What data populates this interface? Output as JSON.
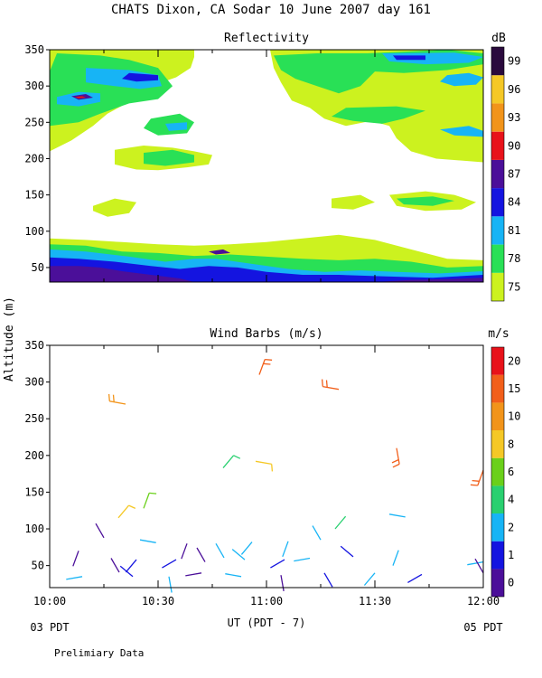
{
  "title": "CHATS Dixon, CA  Sodar  10 June 2007  day 161",
  "ylabel": "Altitude (m)",
  "footer": {
    "left_date": "03 PDT",
    "right_date": "05 PDT",
    "axis_label": "UT  (PDT - 7)",
    "note": "Prelimiary Data"
  },
  "chart_data": [
    {
      "type": "heatmap",
      "title": "Reflectivity",
      "xlabel": "UT  (PDT - 7)",
      "ylabel": "Altitude (m)",
      "x_range": [
        "10:00",
        "12:00"
      ],
      "ylim": [
        30,
        350
      ],
      "y_ticks": [
        50,
        100,
        150,
        200,
        250,
        300,
        350
      ],
      "colorbar": {
        "unit": "dB",
        "levels": [
          75,
          78,
          81,
          84,
          87,
          90,
          93,
          96,
          99
        ],
        "colors": [
          "#ccf21f",
          "#29e056",
          "#17b4f5",
          "#1414e0",
          "#4b0f99",
          "#e8121a",
          "#f2941a",
          "#f5c826",
          "#2a0a3d"
        ]
      },
      "grid": false
    },
    {
      "type": "scatter",
      "title": "Wind Barbs (m/s)",
      "xlabel": "UT  (PDT - 7)",
      "ylabel": "Altitude (m)",
      "x_ticks": [
        "10:00",
        "10:30",
        "11:00",
        "11:30",
        "12:00"
      ],
      "ylim": [
        20,
        350
      ],
      "y_ticks": [
        50,
        100,
        150,
        200,
        250,
        300,
        350
      ],
      "colorbar": {
        "unit": "m/s",
        "levels": [
          0,
          1,
          2,
          4,
          6,
          8,
          10,
          15,
          20
        ],
        "colors": [
          "#4b0f99",
          "#1414e0",
          "#17b4f5",
          "#29d070",
          "#6ad01a",
          "#f5c826",
          "#f2941a",
          "#f25f1a",
          "#e8121a"
        ]
      },
      "barbs": [
        {
          "time": "10:08",
          "z": 70,
          "speed": 0.8
        },
        {
          "time": "10:09",
          "z": 35,
          "speed": 2.5
        },
        {
          "time": "10:15",
          "z": 88,
          "speed": 0.8
        },
        {
          "time": "10:17",
          "z": 60,
          "speed": 0.5
        },
        {
          "time": "10:19",
          "z": 115,
          "speed": 9
        },
        {
          "time": "10:21",
          "z": 270,
          "speed": 10
        },
        {
          "time": "10:23",
          "z": 35,
          "speed": 1
        },
        {
          "time": "10:24",
          "z": 58,
          "speed": 1
        },
        {
          "time": "10:25",
          "z": 85,
          "speed": 2.5
        },
        {
          "time": "10:26",
          "z": 128,
          "speed": 6
        },
        {
          "time": "10:33",
          "z": 35,
          "speed": 2.5
        },
        {
          "time": "10:35",
          "z": 58,
          "speed": 1
        },
        {
          "time": "10:38",
          "z": 80,
          "speed": 0.5
        },
        {
          "time": "10:42",
          "z": 40,
          "speed": 0.5
        },
        {
          "time": "10:43",
          "z": 55,
          "speed": 0.8
        },
        {
          "time": "10:46",
          "z": 80,
          "speed": 3.5
        },
        {
          "time": "10:48",
          "z": 183,
          "speed": 5
        },
        {
          "time": "10:53",
          "z": 35,
          "speed": 2.5
        },
        {
          "time": "10:54",
          "z": 58,
          "speed": 2
        },
        {
          "time": "10:56",
          "z": 82,
          "speed": 3
        },
        {
          "time": "10:57",
          "z": 192,
          "speed": 9
        },
        {
          "time": "10:58",
          "z": 310,
          "speed": 15
        },
        {
          "time": "11:04",
          "z": 37,
          "speed": 0.8
        },
        {
          "time": "11:05",
          "z": 58,
          "speed": 1
        },
        {
          "time": "11:06",
          "z": 83,
          "speed": 3
        },
        {
          "time": "11:12",
          "z": 60,
          "speed": 2
        },
        {
          "time": "11:15",
          "z": 85,
          "speed": 2.5
        },
        {
          "time": "11:16",
          "z": 40,
          "speed": 1
        },
        {
          "time": "11:19",
          "z": 100,
          "speed": 4
        },
        {
          "time": "11:20",
          "z": 290,
          "speed": 15
        },
        {
          "time": "11:24",
          "z": 62,
          "speed": 1
        },
        {
          "time": "11:30",
          "z": 40,
          "speed": 2.5
        },
        {
          "time": "11:34",
          "z": 120,
          "speed": 3
        },
        {
          "time": "11:35",
          "z": 50,
          "speed": 2
        },
        {
          "time": "11:36",
          "z": 210,
          "speed": 15
        },
        {
          "time": "11:43",
          "z": 38,
          "speed": 1
        },
        {
          "time": "12:00",
          "z": 180,
          "speed": 15
        },
        {
          "time": "12:00",
          "z": 55,
          "speed": 2
        },
        {
          "time": "12:00",
          "z": 40,
          "speed": 0.8
        }
      ]
    }
  ]
}
